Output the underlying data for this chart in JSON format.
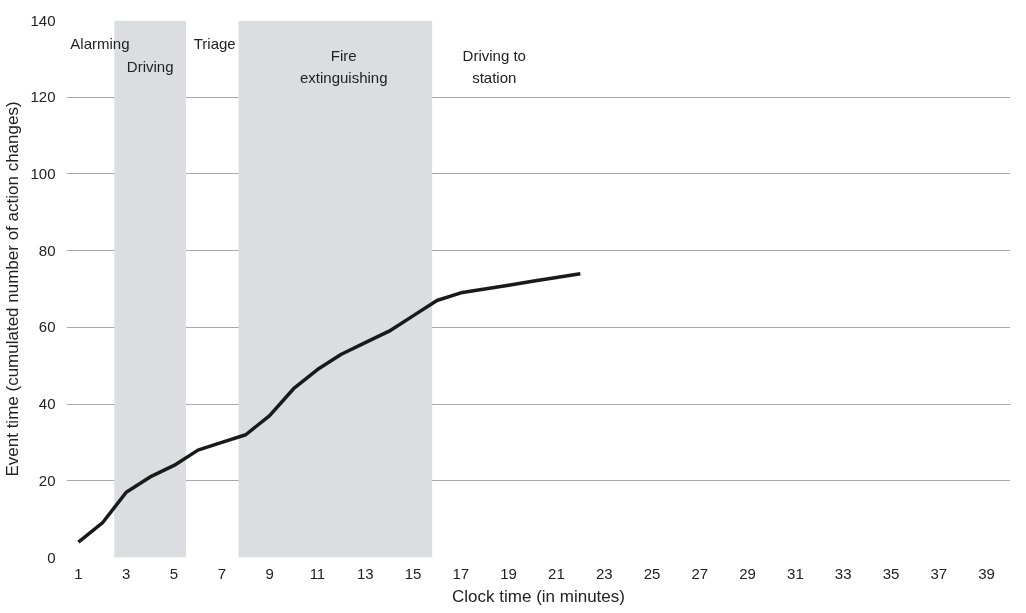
{
  "chart_data": {
    "type": "line",
    "xlabel": "Clock time (in minutes)",
    "ylabel": "Event time (cumulated number of action changes)",
    "x": [
      1,
      2,
      3,
      4,
      5,
      6,
      7,
      8,
      9,
      10,
      11,
      12,
      13,
      14,
      15,
      16,
      17,
      18,
      19,
      20,
      21,
      22
    ],
    "series": [
      {
        "color": "#1a1a1a",
        "values": [
          4,
          9,
          17,
          21,
          24,
          28,
          30,
          32,
          37,
          44,
          49,
          53,
          56,
          59,
          63,
          67,
          69,
          70,
          71,
          72,
          73,
          74
        ]
      }
    ],
    "xlim": [
      0.5,
      40
    ],
    "xticks": [
      1,
      3,
      5,
      7,
      9,
      11,
      13,
      15,
      17,
      19,
      21,
      23,
      25,
      27,
      29,
      31,
      33,
      35,
      37,
      39
    ],
    "ylim": [
      0,
      140
    ],
    "yticks": [
      0,
      20,
      40,
      60,
      80,
      100,
      120,
      140
    ],
    "grid": "y",
    "marker": "none",
    "line_style": "solid",
    "bands": [
      {
        "axis": "x",
        "from": 2.5,
        "to": 5.5,
        "color": "#dcdde0"
      },
      {
        "axis": "x",
        "from": 7.7,
        "to": 15.8,
        "color": "#dcdde0"
      }
    ],
    "annotations": [
      "Alarming",
      "Driving",
      "Triage",
      "Fire\nextinguishing",
      "Driving to\nstation"
    ]
  }
}
